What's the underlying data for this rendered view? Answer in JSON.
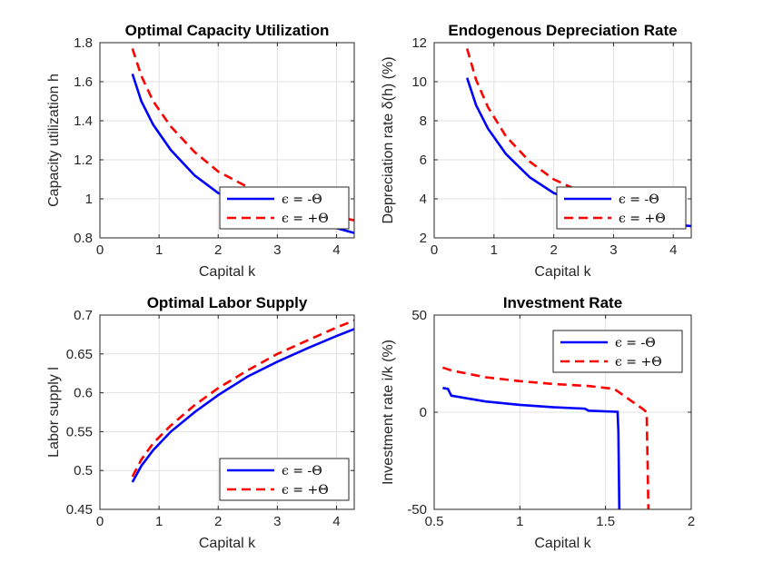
{
  "chart_data": [
    {
      "type": "line",
      "title": "Optimal Capacity Utilization",
      "xlabel": "Capital k",
      "ylabel": "Capacity utilization h",
      "xlim": [
        0,
        4.3
      ],
      "ylim": [
        0.8,
        1.8
      ],
      "xticks": [
        0,
        1,
        2,
        3,
        4
      ],
      "yticks": [
        0.8,
        1,
        1.2,
        1.4,
        1.6,
        1.8
      ],
      "grid": true,
      "legend_position": "bottom-right",
      "series": [
        {
          "name": "ϵ = -Θ",
          "color": "#0000ff",
          "dash": "solid",
          "x": [
            0.55,
            0.7,
            0.9,
            1.2,
            1.6,
            2.0,
            2.5,
            3.0,
            3.5,
            4.0,
            4.3
          ],
          "y": [
            1.64,
            1.5,
            1.38,
            1.25,
            1.12,
            1.03,
            0.97,
            0.93,
            0.89,
            0.85,
            0.825
          ]
        },
        {
          "name": "ϵ = +Θ",
          "color": "#ff0000",
          "dash": "dashed",
          "x": [
            0.55,
            0.7,
            0.9,
            1.2,
            1.6,
            2.0,
            2.5,
            3.0,
            3.5,
            4.0,
            4.3
          ],
          "y": [
            1.77,
            1.63,
            1.5,
            1.37,
            1.24,
            1.14,
            1.06,
            0.99,
            0.94,
            0.91,
            0.89
          ]
        }
      ]
    },
    {
      "type": "line",
      "title": "Endogenous Depreciation Rate",
      "xlabel": "Capital k",
      "ylabel": "Depreciation rate δ(h) (%)",
      "xlim": [
        0,
        4.3
      ],
      "ylim": [
        2,
        12
      ],
      "xticks": [
        0,
        1,
        2,
        3,
        4
      ],
      "yticks": [
        2,
        4,
        6,
        8,
        10,
        12
      ],
      "grid": true,
      "legend_position": "bottom-right",
      "series": [
        {
          "name": "ϵ = -Θ",
          "color": "#0000ff",
          "dash": "solid",
          "x": [
            0.55,
            0.7,
            0.9,
            1.2,
            1.6,
            2.0,
            2.5,
            3.0,
            3.5,
            4.0,
            4.3
          ],
          "y": [
            10.2,
            8.8,
            7.6,
            6.3,
            5.1,
            4.3,
            3.7,
            3.3,
            3.0,
            2.7,
            2.6
          ]
        },
        {
          "name": "ϵ = +Θ",
          "color": "#ff0000",
          "dash": "dashed",
          "x": [
            0.55,
            0.7,
            0.9,
            1.2,
            1.6,
            2.0,
            2.5,
            3.0,
            3.5,
            4.0,
            4.3
          ],
          "y": [
            11.7,
            10.1,
            8.7,
            7.2,
            5.9,
            5.0,
            4.3,
            3.8,
            3.4,
            3.1,
            2.9
          ]
        }
      ]
    },
    {
      "type": "line",
      "title": "Optimal Labor Supply",
      "xlabel": "Capital k",
      "ylabel": "Labor supply l",
      "xlim": [
        0,
        4.3
      ],
      "ylim": [
        0.45,
        0.7
      ],
      "xticks": [
        0,
        1,
        2,
        3,
        4
      ],
      "yticks": [
        0.45,
        0.5,
        0.55,
        0.6,
        0.65,
        0.7
      ],
      "grid": true,
      "legend_position": "bottom-right",
      "series": [
        {
          "name": "ϵ = -Θ",
          "color": "#0000ff",
          "dash": "solid",
          "x": [
            0.55,
            0.7,
            0.9,
            1.2,
            1.6,
            2.0,
            2.5,
            3.0,
            3.5,
            4.0,
            4.3
          ],
          "y": [
            0.485,
            0.506,
            0.526,
            0.55,
            0.575,
            0.597,
            0.621,
            0.64,
            0.657,
            0.673,
            0.682
          ]
        },
        {
          "name": "ϵ = +Θ",
          "color": "#ff0000",
          "dash": "dashed",
          "x": [
            0.55,
            0.7,
            0.9,
            1.2,
            1.6,
            2.0,
            2.5,
            3.0,
            3.5,
            4.0,
            4.3
          ],
          "y": [
            0.492,
            0.514,
            0.535,
            0.558,
            0.584,
            0.606,
            0.629,
            0.65,
            0.667,
            0.684,
            0.693
          ]
        }
      ]
    },
    {
      "type": "line",
      "title": "Investment Rate",
      "xlabel": "Capital k",
      "ylabel": "Investment rate i/k (%)",
      "xlim": [
        0.5,
        2
      ],
      "ylim": [
        -50,
        50
      ],
      "xticks": [
        0.5,
        1,
        1.5,
        2
      ],
      "yticks": [
        -50,
        0,
        50
      ],
      "grid": true,
      "legend_position": "top-right",
      "series": [
        {
          "name": "ϵ = -Θ",
          "color": "#0000ff",
          "dash": "solid",
          "x": [
            0.55,
            0.58,
            0.6,
            0.8,
            1.0,
            1.2,
            1.38,
            1.4,
            1.57,
            1.575,
            1.58
          ],
          "y": [
            12.5,
            12,
            8.5,
            5.5,
            3.8,
            2.5,
            1.8,
            0.8,
            0.2,
            -10,
            -50
          ]
        },
        {
          "name": "ϵ = +Θ",
          "color": "#ff0000",
          "dash": "dashed",
          "x": [
            0.55,
            0.6,
            0.8,
            1.0,
            1.2,
            1.4,
            1.55,
            1.72,
            1.74,
            1.745,
            1.75
          ],
          "y": [
            23,
            21.5,
            18,
            16,
            14.5,
            13.5,
            12,
            1.5,
            0,
            -25,
            -50
          ]
        }
      ]
    }
  ]
}
